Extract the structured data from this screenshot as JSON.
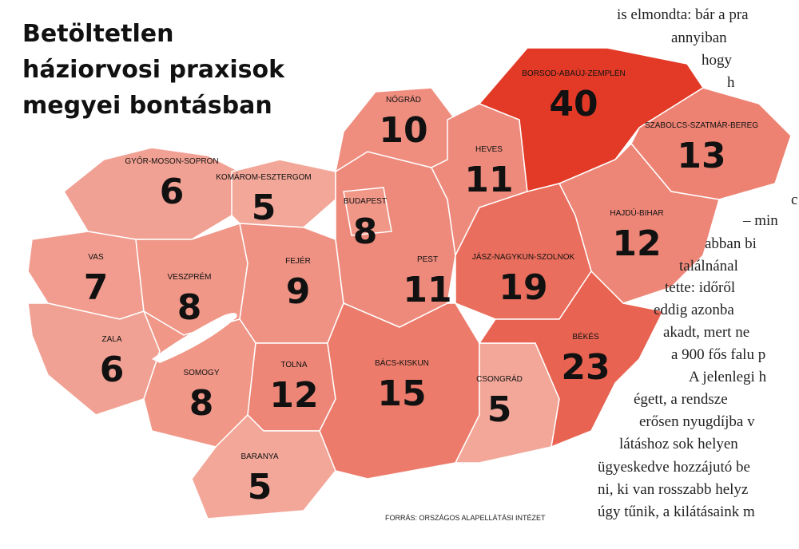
{
  "title": {
    "lines": [
      "Betöltetlen",
      "háziorvosi praxisok",
      "megyei bontásban"
    ]
  },
  "regions": [
    {
      "name": "GYŐR-MOSON-SOPRON",
      "value": 6
    },
    {
      "name": "KOMÁROM-ESZTERGOM",
      "value": 5
    },
    {
      "name": "VAS",
      "value": 7
    },
    {
      "name": "VESZPRÉM",
      "value": 8
    },
    {
      "name": "FEJÉR",
      "value": 9
    },
    {
      "name": "ZALA",
      "value": 6
    },
    {
      "name": "SOMOGY",
      "value": 8
    },
    {
      "name": "TOLNA",
      "value": 12
    },
    {
      "name": "BARANYA",
      "value": 5
    },
    {
      "name": "PEST",
      "value": 11
    },
    {
      "name": "BUDAPEST",
      "value": 8
    },
    {
      "name": "NÓGRÁD",
      "value": 10
    },
    {
      "name": "HEVES",
      "value": 11
    },
    {
      "name": "BORSOD-ABAÚJ-ZEMPLÉN",
      "value": 40
    },
    {
      "name": "SZABOLCS-SZATMÁR-BEREG",
      "value": 13
    },
    {
      "name": "HAJDÚ-BIHAR",
      "value": 12
    },
    {
      "name": "JÁSZ-NAGYKUN-SZOLNOK",
      "value": 19
    },
    {
      "name": "BÁCS-KISKUN",
      "value": 15
    },
    {
      "name": "CSONGRÁD",
      "value": 5
    },
    {
      "name": "BÉKÉS",
      "value": 23
    }
  ],
  "source": "FORRÁS: ORSZÁGOS ALAPELLÁTÁSI INTÉZET",
  "article": {
    "lines": [
      "is elmondta: bár a pra",
      "annyiban",
      "hogy",
      "h",
      "c",
      "– min",
      "abban bi",
      "találnánal",
      "tette: időről",
      "eddig azonba",
      "akadt, mert ne",
      "a 900 fős falu p",
      "A jelenlegi h",
      "égett, a rendsze",
      "erősen nyugdíjba v",
      "látáshoz sok helyen",
      "ügyeskedve hozzájutó be",
      "ni, ki van rosszabb helyz",
      "úgy tűnik, a kilátásaink m"
    ]
  }
}
